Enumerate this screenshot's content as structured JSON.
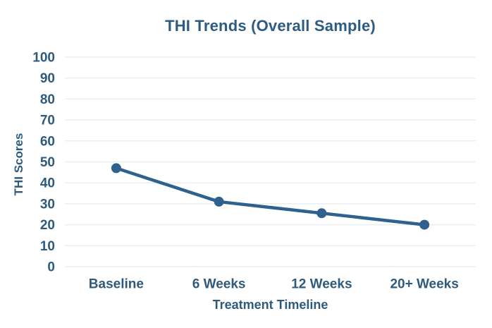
{
  "chart_data": {
    "type": "line",
    "title": "THI Trends (Overall Sample)",
    "xlabel": "Treatment Timeline",
    "ylabel": "THI Scores",
    "categories": [
      "Baseline",
      "6 Weeks",
      "12 Weeks",
      "20+ Weeks"
    ],
    "series": [
      {
        "name": "THI Scores",
        "values": [
          47,
          31,
          25.5,
          20
        ]
      }
    ],
    "ylim": [
      0,
      100
    ],
    "y_ticks": [
      0,
      10,
      20,
      30,
      40,
      50,
      60,
      70,
      80,
      90,
      100
    ],
    "grid": "horizontal",
    "legend": "none",
    "colors": {
      "series": "#2f618e",
      "text": "#2e5a7d",
      "title": "#2d5b81",
      "grid": "#e9edf0",
      "background": "#ffffff"
    }
  }
}
